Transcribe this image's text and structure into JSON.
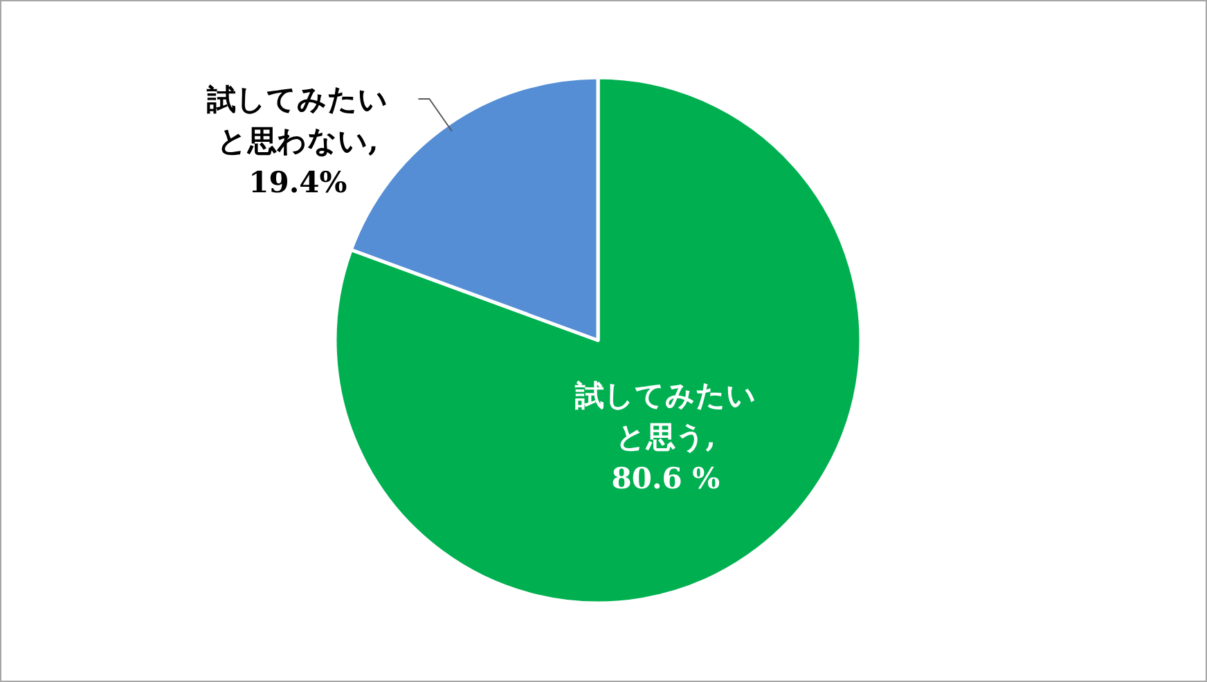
{
  "chart_data": {
    "type": "pie",
    "categories": [
      "試してみたいと思う",
      "試してみたいと思わない"
    ],
    "values": [
      80.6,
      19.4
    ],
    "value_labels": [
      ",\n80.6 %",
      ",\n19.4%"
    ],
    "colors": [
      "#00b050",
      "#558ed5"
    ],
    "legend": false
  }
}
